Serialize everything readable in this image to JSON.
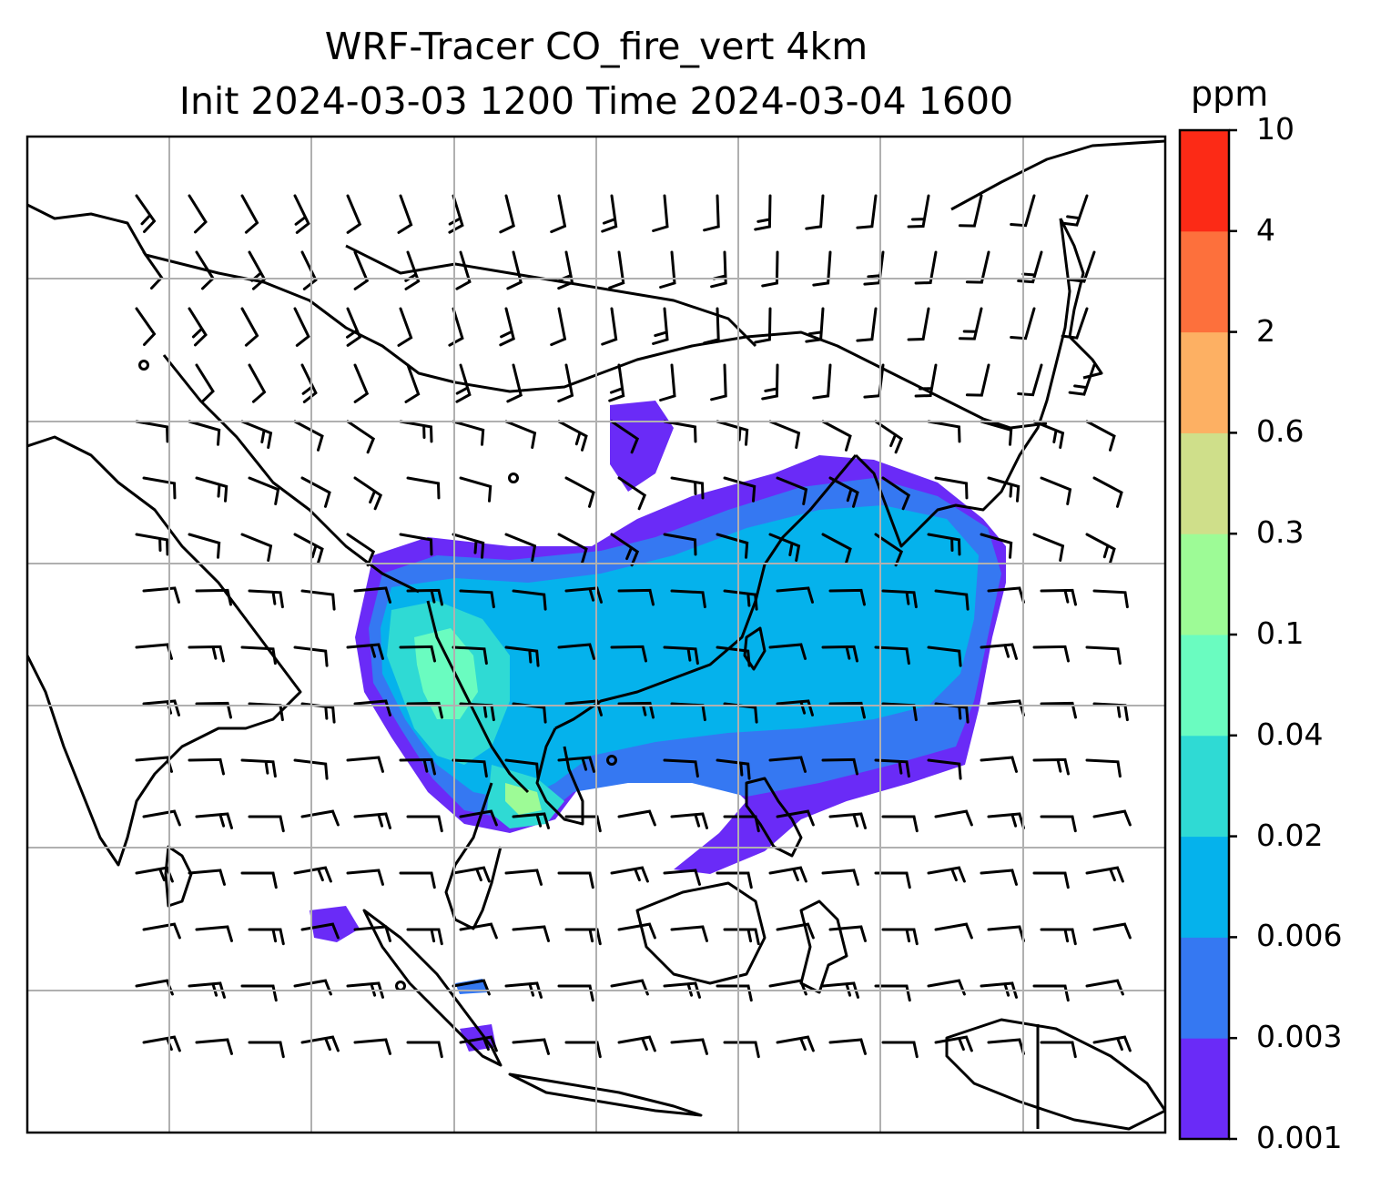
{
  "chart_data": {
    "type": "heatmap",
    "title": "WRF-Tracer CO_fire_vert 4km",
    "subtitle": "Init 2024-03-03 1200 Time 2024-03-04 1600",
    "grid": true,
    "legend": "right",
    "colorbar": {
      "unit": "ppm",
      "ticks": [
        "0.001",
        "0.003",
        "0.006",
        "0.02",
        "0.04",
        "0.1",
        "0.3",
        "0.6",
        "2",
        "4",
        "10"
      ],
      "colors": [
        "#6a2bf7",
        "#3578f2",
        "#05b2ec",
        "#2fdad4",
        "#6afcc0",
        "#9dfb96",
        "#cfdf8a",
        "#fdb063",
        "#fd703c",
        "#fc2a16"
      ]
    },
    "overlay": [
      "coastlines",
      "country borders",
      "wind barbs"
    ]
  }
}
